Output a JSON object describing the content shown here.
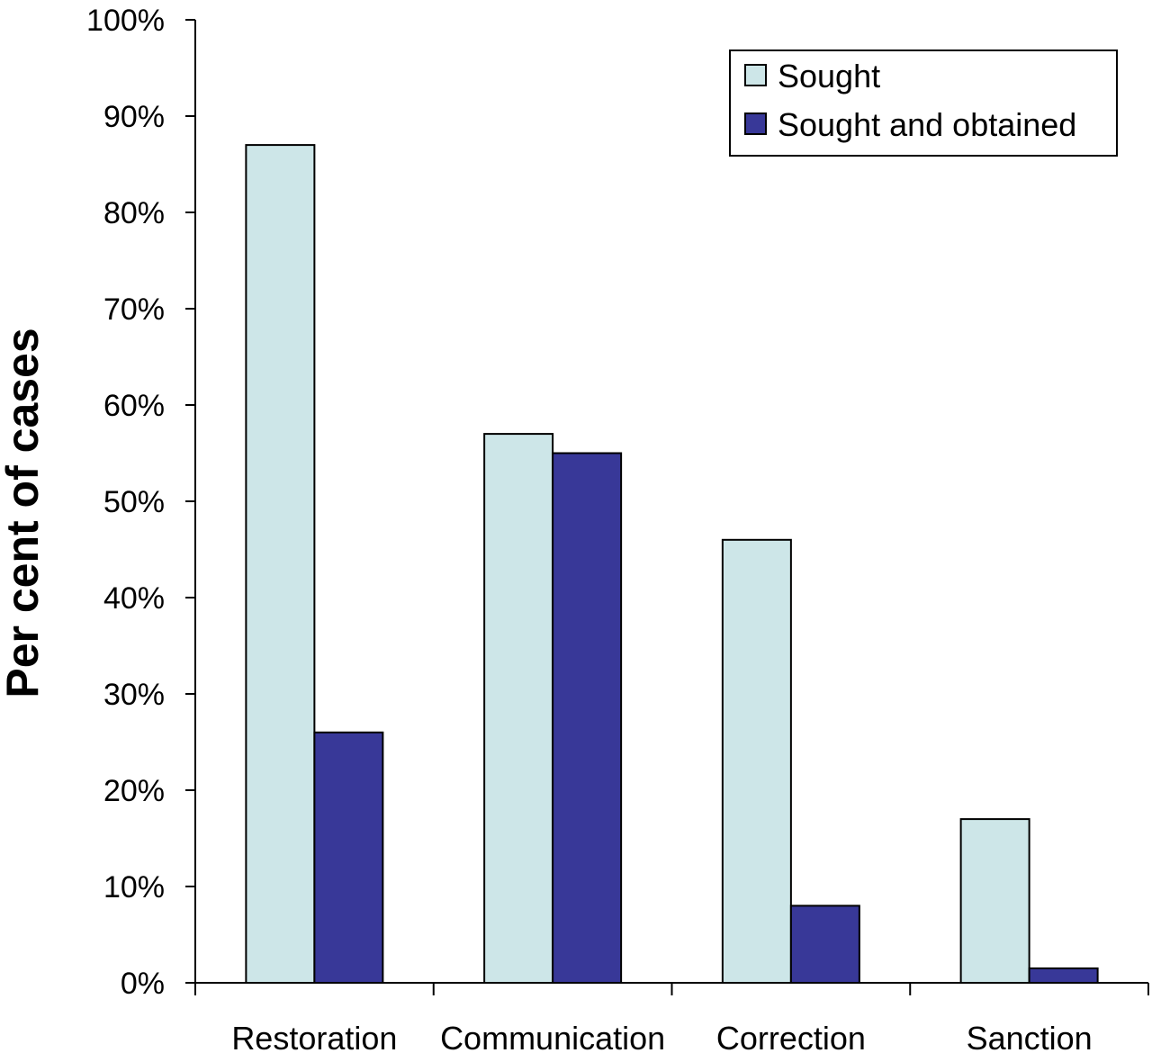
{
  "chart_data": {
    "type": "bar",
    "title": "",
    "xlabel": "",
    "ylabel": "Per cent of cases",
    "ylim": [
      0,
      100
    ],
    "y_ticks": [
      "0%",
      "10%",
      "20%",
      "30%",
      "40%",
      "50%",
      "60%",
      "70%",
      "80%",
      "90%",
      "100%"
    ],
    "categories": [
      "Restoration",
      "Communication",
      "Correction",
      "Sanction"
    ],
    "series": [
      {
        "name": "Sought",
        "values": [
          87,
          57,
          46,
          17
        ],
        "color": "#cde6e8"
      },
      {
        "name": "Sought and obtained",
        "values": [
          26,
          55,
          8,
          1.5
        ],
        "color": "#383898"
      }
    ],
    "grid": false,
    "legend_position": "top-right"
  }
}
